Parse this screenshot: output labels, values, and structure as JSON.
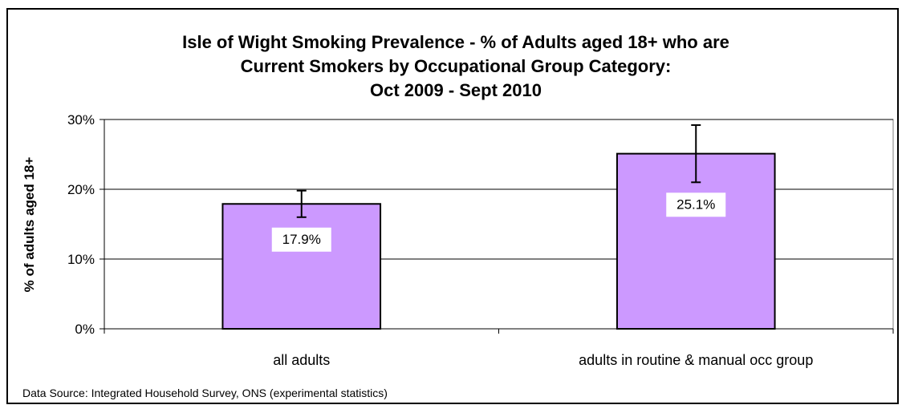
{
  "chart_data": {
    "type": "bar",
    "title": [
      "Isle of Wight Smoking Prevalence - % of Adults aged 18+ who are",
      "Current Smokers by Occupational Group Category:",
      "Oct 2009 - Sept 2010"
    ],
    "xlabel": "",
    "ylabel": "% of adults aged 18+",
    "categories": [
      "all adults",
      "adults in routine & manual occ group"
    ],
    "values": [
      17.9,
      25.1
    ],
    "value_labels": [
      "17.9%",
      "25.1%"
    ],
    "error_bars": [
      {
        "low": 16.0,
        "high": 19.8
      },
      {
        "low": 21.0,
        "high": 29.2
      }
    ],
    "ylim": [
      0,
      30
    ],
    "yticks": [
      0,
      10,
      20,
      30
    ],
    "ytick_labels": [
      "0%",
      "10%",
      "20%",
      "30%"
    ],
    "grid": true,
    "legend": "none",
    "bar_color": "#cc99ff",
    "source_note": "Data Source: Integrated Household Survey, ONS (experimental statistics)"
  }
}
